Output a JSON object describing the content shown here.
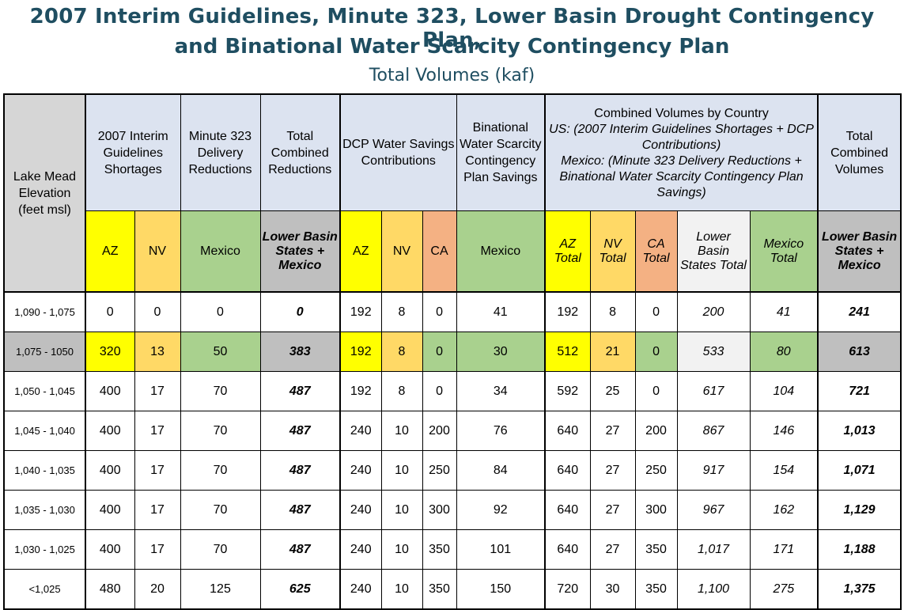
{
  "title": {
    "line1": "2007 Interim Guidelines, Minute 323, Lower Basin Drought Contingency Plan,",
    "line2": "and Binational Water Scarcity Contingency Plan",
    "line3": "Total Volumes (kaf)"
  },
  "headers": {
    "elevation": "Lake Mead Elevation (feet msl)",
    "interim": "2007 Interim Guidelines Shortages",
    "minute323": "Minute 323 Delivery Reductions",
    "total_combined_reductions": "Total Combined Reductions",
    "dcp": "DCP Water Savings Contributions",
    "binational": "Binational Water Scarcity Contingency Plan Savings",
    "combined_title": "Combined Volumes by Country",
    "combined_us": "US: (2007 Interim Guidelines Shortages + DCP Contributions)",
    "combined_mexico": "Mexico: (Minute 323 Delivery Reductions + Binational Water Scarcity Contingency Plan Savings)",
    "total_combined_volumes": "Total Combined Volumes"
  },
  "subheaders": {
    "az": "AZ",
    "nv": "NV",
    "mexico": "Mexico",
    "lbs_mexico": "Lower Basin States + Mexico",
    "dcp_az": "AZ",
    "dcp_nv": "NV",
    "dcp_ca": "CA",
    "bin_mexico": "Mexico",
    "az_total": "AZ Total",
    "nv_total": "NV Total",
    "ca_total": "CA Total",
    "lbs_total": "Lower Basin States Total",
    "mexico_total": "Mexico Total",
    "tcv_lbs_mexico": "Lower Basin States + Mexico"
  },
  "rows": [
    [
      "1,090 - 1,075",
      "0",
      "0",
      "0",
      "0",
      "192",
      "8",
      "0",
      "41",
      "192",
      "8",
      "0",
      "200",
      "41",
      "241"
    ],
    [
      "1,075 - 1050",
      "320",
      "13",
      "50",
      "383",
      "192",
      "8",
      "0",
      "30",
      "512",
      "21",
      "0",
      "533",
      "80",
      "613"
    ],
    [
      "1,050 - 1,045",
      "400",
      "17",
      "70",
      "487",
      "192",
      "8",
      "0",
      "34",
      "592",
      "25",
      "0",
      "617",
      "104",
      "721"
    ],
    [
      "1,045 - 1,040",
      "400",
      "17",
      "70",
      "487",
      "240",
      "10",
      "200",
      "76",
      "640",
      "27",
      "200",
      "867",
      "146",
      "1,013"
    ],
    [
      "1,040 - 1,035",
      "400",
      "17",
      "70",
      "487",
      "240",
      "10",
      "250",
      "84",
      "640",
      "27",
      "250",
      "917",
      "154",
      "1,071"
    ],
    [
      "1,035 - 1,030",
      "400",
      "17",
      "70",
      "487",
      "240",
      "10",
      "300",
      "92",
      "640",
      "27",
      "300",
      "967",
      "162",
      "1,129"
    ],
    [
      "1,030 - 1,025",
      "400",
      "17",
      "70",
      "487",
      "240",
      "10",
      "350",
      "101",
      "640",
      "27",
      "350",
      "1,017",
      "171",
      "1,188"
    ],
    [
      "<1,025",
      "480",
      "20",
      "125",
      "625",
      "240",
      "10",
      "350",
      "150",
      "720",
      "30",
      "350",
      "1,100",
      "275",
      "1,375"
    ]
  ],
  "colors": {
    "title": "#1f4e61",
    "header_blue": "#dce3f0",
    "az_yellow": "#ffff00",
    "nv_orange": "#ffd966",
    "ca_salmon": "#f4b183",
    "mexico_green": "#a9d18e",
    "highlight_gray": "#bfbfbf"
  }
}
